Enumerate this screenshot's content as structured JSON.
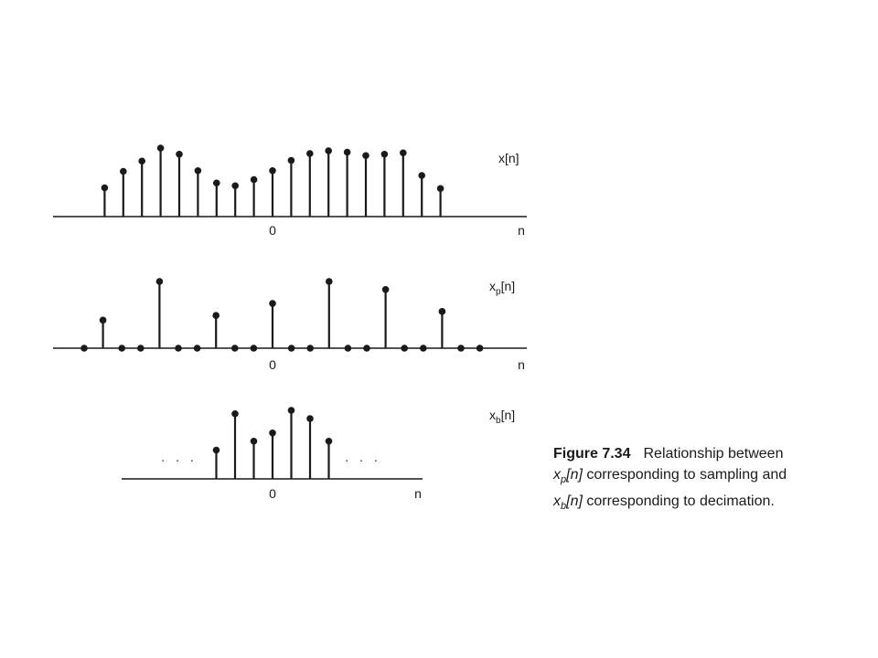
{
  "figure": {
    "label": "Figure 7.34",
    "caption_line1": "Relationship between",
    "caption_line2_sym": "x",
    "caption_line2_sub": "p",
    "caption_line2_arg": "[n]",
    "caption_line2_text": " corresponding to sampling and",
    "caption_line3_sym": "x",
    "caption_line3_sub": "b",
    "caption_line3_arg": "[n]",
    "caption_line3_text": " corresponding to decimation."
  },
  "chart_data": [
    {
      "type": "stem",
      "label_main": "x",
      "label_sub": "",
      "label_arg": "[n]",
      "origin_label": "0",
      "axis_label": "n",
      "n": [
        -9,
        -8,
        -7,
        -6,
        -5,
        -4,
        -3,
        -2,
        -1,
        0,
        1,
        2,
        3,
        4,
        5,
        6,
        7,
        8,
        9
      ],
      "values": [
        0.42,
        0.66,
        0.81,
        1.0,
        0.91,
        0.67,
        0.49,
        0.45,
        0.54,
        0.67,
        0.82,
        0.92,
        0.96,
        0.94,
        0.89,
        0.91,
        0.93,
        0.6,
        0.41
      ],
      "ellipsis": false
    },
    {
      "type": "stem",
      "label_main": "x",
      "label_sub": "p",
      "label_arg": "[n]",
      "origin_label": "0",
      "axis_label": "n",
      "n": [
        -10,
        -9,
        -8,
        -7,
        -6,
        -5,
        -4,
        -3,
        -2,
        -1,
        0,
        1,
        2,
        3,
        4,
        5,
        6,
        7,
        8,
        9,
        10,
        11
      ],
      "values": [
        0,
        0.42,
        0,
        0,
        1.0,
        0,
        0,
        0.49,
        0,
        0,
        0.67,
        0,
        0,
        1.0,
        0,
        0,
        0.88,
        0,
        0,
        0.55,
        0,
        0
      ],
      "ellipsis": false
    },
    {
      "type": "stem",
      "label_main": "x",
      "label_sub": "b",
      "label_arg": "[n]",
      "origin_label": "0",
      "axis_label": "n",
      "n": [
        -3,
        -2,
        -1,
        0,
        1,
        2,
        3
      ],
      "values": [
        0.42,
        0.95,
        0.55,
        0.67,
        1.0,
        0.88,
        0.55
      ],
      "ellipsis": true,
      "ellipsis_text": ". . ."
    }
  ]
}
